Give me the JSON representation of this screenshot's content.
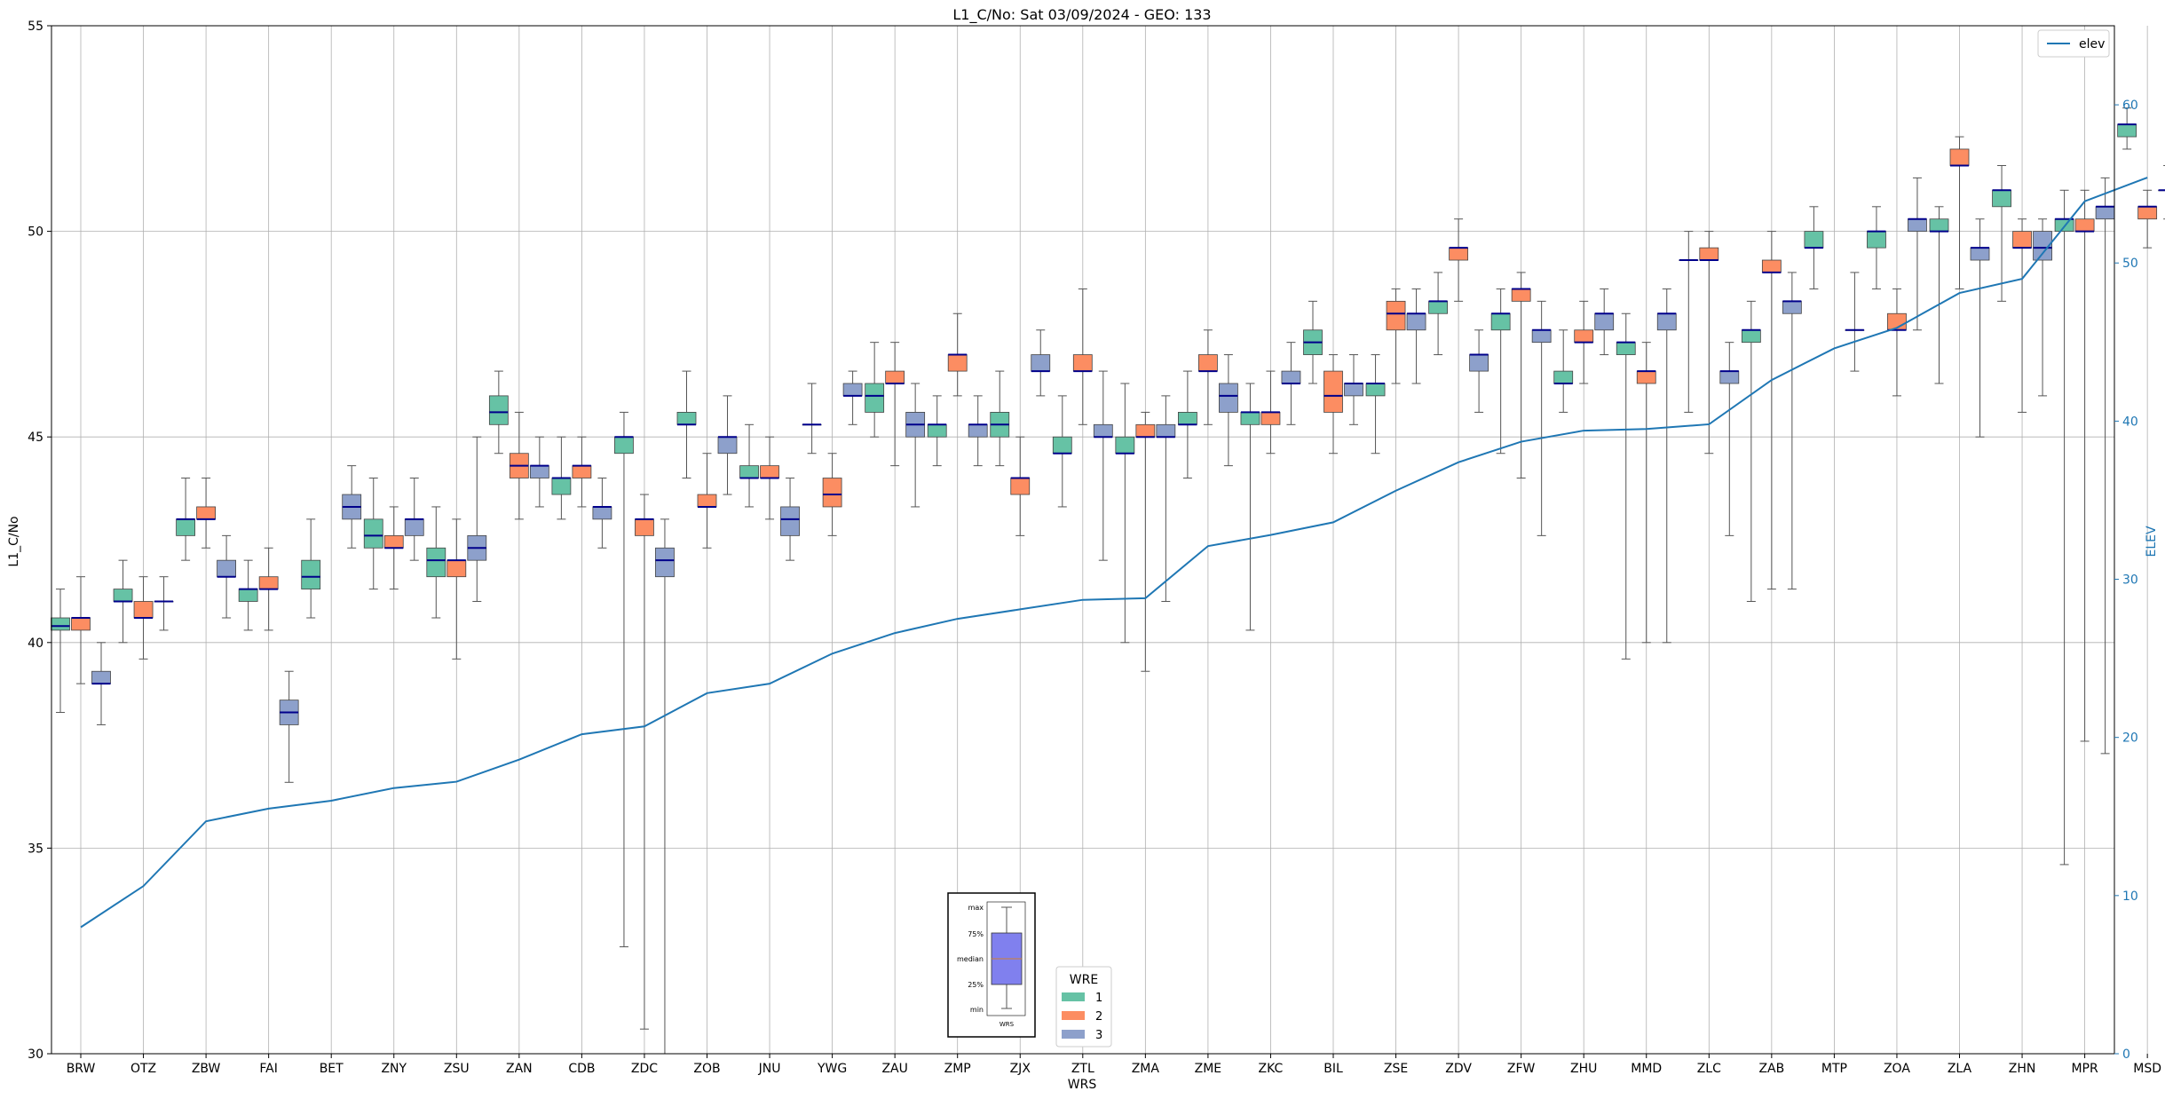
{
  "chart_data": {
    "type": "box",
    "title": "L1_C/No: Sat 03/09/2024 - GEO: 133",
    "xlabel": "WRS",
    "ylabel": "L1_C/No",
    "ylabel_right": "ELEV",
    "ylim": [
      30,
      55
    ],
    "ylim_right": [
      0,
      65
    ],
    "yticks": [
      30,
      35,
      40,
      45,
      50,
      55
    ],
    "yticks_right": [
      0,
      10,
      20,
      30,
      40,
      50,
      60
    ],
    "grid": true,
    "categories": [
      "BRW",
      "OTZ",
      "ZBW",
      "FAI",
      "BET",
      "ZNY",
      "ZSU",
      "ZAN",
      "CDB",
      "ZDC",
      "ZOB",
      "JNU",
      "YWG",
      "ZAU",
      "ZMP",
      "ZJX",
      "ZTL",
      "ZMA",
      "ZME",
      "ZKC",
      "BIL",
      "ZSE",
      "ZDV",
      "ZFW",
      "ZHU",
      "MMD",
      "ZLC",
      "ZAB",
      "MTP",
      "ZOA",
      "ZLA",
      "ZHN",
      "MPR",
      "MSD"
    ],
    "legend_wre": {
      "title": "WRE",
      "placement": "bottom-center",
      "entries": [
        "1",
        "2",
        "3"
      ],
      "colors": [
        "#66c2a5",
        "#fc8d62",
        "#8da0cb"
      ]
    },
    "legend_elev": {
      "label": "elev",
      "placement": "top-right",
      "color": "#1f77b4"
    },
    "key": {
      "labels": [
        "max",
        "75%",
        "median",
        "25%",
        "min"
      ],
      "xlabel": "WRS",
      "box_color": "#8080ee"
    },
    "median_color": "#00008b",
    "elev": [
      8,
      10.6,
      14.7,
      15.5,
      16,
      16.8,
      17.2,
      18.6,
      20.2,
      20.7,
      22.8,
      23.4,
      25.3,
      26.6,
      27.5,
      28.1,
      28.7,
      28.8,
      32.1,
      32.8,
      33.6,
      35.6,
      37.4,
      38.7,
      39.4,
      39.5,
      39.8,
      42.6,
      44.6,
      45.9,
      48.1,
      49.0,
      53.9,
      55.4
    ],
    "boxes": [
      {
        "cat": "BRW",
        "wre": 1,
        "whislo": 38.3,
        "q1": 40.3,
        "med": 40.4,
        "q3": 40.6,
        "whishi": 41.3
      },
      {
        "cat": "BRW",
        "wre": 2,
        "whislo": 39,
        "q1": 40.3,
        "med": 40.6,
        "q3": 40.6,
        "whishi": 41.6
      },
      {
        "cat": "BRW",
        "wre": 3,
        "whislo": 38,
        "q1": 39,
        "med": 39,
        "q3": 39.3,
        "whishi": 40
      },
      {
        "cat": "OTZ",
        "wre": 1,
        "whislo": 40,
        "q1": 41,
        "med": 41,
        "q3": 41.3,
        "whishi": 42
      },
      {
        "cat": "OTZ",
        "wre": 2,
        "whislo": 39.6,
        "q1": 40.6,
        "med": 40.6,
        "q3": 41,
        "whishi": 41.6
      },
      {
        "cat": "OTZ",
        "wre": 3,
        "whislo": 40.3,
        "q1": 41,
        "med": 41,
        "q3": 41,
        "whishi": 41.6
      },
      {
        "cat": "ZBW",
        "wre": 1,
        "whislo": 42,
        "q1": 42.6,
        "med": 43,
        "q3": 43,
        "whishi": 44
      },
      {
        "cat": "ZBW",
        "wre": 2,
        "whislo": 42.3,
        "q1": 43,
        "med": 43,
        "q3": 43.3,
        "whishi": 44
      },
      {
        "cat": "ZBW",
        "wre": 3,
        "whislo": 40.6,
        "q1": 41.6,
        "med": 41.6,
        "q3": 42,
        "whishi": 42.6
      },
      {
        "cat": "FAI",
        "wre": 1,
        "whislo": 40.3,
        "q1": 41,
        "med": 41.3,
        "q3": 41.3,
        "whishi": 42
      },
      {
        "cat": "FAI",
        "wre": 2,
        "whislo": 40.3,
        "q1": 41.3,
        "med": 41.3,
        "q3": 41.6,
        "whishi": 42.3
      },
      {
        "cat": "FAI",
        "wre": 3,
        "whislo": 36.6,
        "q1": 38,
        "med": 38.3,
        "q3": 38.6,
        "whishi": 39.3
      },
      {
        "cat": "BET",
        "wre": 1,
        "whislo": 40.6,
        "q1": 41.3,
        "med": 41.6,
        "q3": 42,
        "whishi": 43
      },
      {
        "cat": "BET",
        "wre": 3,
        "whislo": 42.3,
        "q1": 43,
        "med": 43.3,
        "q3": 43.6,
        "whishi": 44.3
      },
      {
        "cat": "ZNY",
        "wre": 1,
        "whislo": 41.3,
        "q1": 42.3,
        "med": 42.6,
        "q3": 43,
        "whishi": 44
      },
      {
        "cat": "ZNY",
        "wre": 2,
        "whislo": 41.3,
        "q1": 42.3,
        "med": 42.3,
        "q3": 42.6,
        "whishi": 43.3
      },
      {
        "cat": "ZNY",
        "wre": 3,
        "whislo": 42,
        "q1": 42.6,
        "med": 43,
        "q3": 43,
        "whishi": 44
      },
      {
        "cat": "ZSU",
        "wre": 1,
        "whislo": 40.6,
        "q1": 41.6,
        "med": 42,
        "q3": 42.3,
        "whishi": 43.3
      },
      {
        "cat": "ZSU",
        "wre": 2,
        "whislo": 39.6,
        "q1": 41.6,
        "med": 42,
        "q3": 42,
        "whishi": 43
      },
      {
        "cat": "ZSU",
        "wre": 3,
        "whislo": 41,
        "q1": 42,
        "med": 42.3,
        "q3": 42.6,
        "whishi": 45
      },
      {
        "cat": "ZAN",
        "wre": 1,
        "whislo": 44.6,
        "q1": 45.3,
        "med": 45.6,
        "q3": 46,
        "whishi": 46.6
      },
      {
        "cat": "ZAN",
        "wre": 2,
        "whislo": 43,
        "q1": 44,
        "med": 44.3,
        "q3": 44.6,
        "whishi": 45.6
      },
      {
        "cat": "ZAN",
        "wre": 3,
        "whislo": 43.3,
        "q1": 44,
        "med": 44.3,
        "q3": 44.3,
        "whishi": 45
      },
      {
        "cat": "CDB",
        "wre": 1,
        "whislo": 43,
        "q1": 43.6,
        "med": 44,
        "q3": 44,
        "whishi": 45
      },
      {
        "cat": "CDB",
        "wre": 2,
        "whislo": 43.3,
        "q1": 44,
        "med": 44.3,
        "q3": 44.3,
        "whishi": 45
      },
      {
        "cat": "CDB",
        "wre": 3,
        "whislo": 42.3,
        "q1": 43,
        "med": 43.3,
        "q3": 43.3,
        "whishi": 44
      },
      {
        "cat": "ZDC",
        "wre": 1,
        "whislo": 32.6,
        "q1": 44.6,
        "med": 45,
        "q3": 45,
        "whishi": 45.6
      },
      {
        "cat": "ZDC",
        "wre": 2,
        "whislo": 30.6,
        "q1": 42.6,
        "med": 43,
        "q3": 43,
        "whishi": 43.6
      },
      {
        "cat": "ZDC",
        "wre": 3,
        "whislo": 30,
        "q1": 41.6,
        "med": 42,
        "q3": 42.3,
        "whishi": 43
      },
      {
        "cat": "ZOB",
        "wre": 1,
        "whislo": 44,
        "q1": 45.3,
        "med": 45.3,
        "q3": 45.6,
        "whishi": 46.6
      },
      {
        "cat": "ZOB",
        "wre": 2,
        "whislo": 42.3,
        "q1": 43.3,
        "med": 43.3,
        "q3": 43.6,
        "whishi": 44.6
      },
      {
        "cat": "ZOB",
        "wre": 3,
        "whislo": 43.6,
        "q1": 44.6,
        "med": 45,
        "q3": 45,
        "whishi": 46
      },
      {
        "cat": "JNU",
        "wre": 1,
        "whislo": 43.3,
        "q1": 44,
        "med": 44,
        "q3": 44.3,
        "whishi": 45.3
      },
      {
        "cat": "JNU",
        "wre": 2,
        "whislo": 43,
        "q1": 44,
        "med": 44,
        "q3": 44.3,
        "whishi": 45
      },
      {
        "cat": "JNU",
        "wre": 3,
        "whislo": 42,
        "q1": 42.6,
        "med": 43,
        "q3": 43.3,
        "whishi": 44
      },
      {
        "cat": "YWG",
        "wre": 1,
        "whislo": 44.6,
        "q1": 45.3,
        "med": 45.3,
        "q3": 45.3,
        "whishi": 46.3
      },
      {
        "cat": "YWG",
        "wre": 2,
        "whislo": 42.6,
        "q1": 43.3,
        "med": 43.6,
        "q3": 44,
        "whishi": 44.6
      },
      {
        "cat": "YWG",
        "wre": 3,
        "whislo": 45.3,
        "q1": 46,
        "med": 46,
        "q3": 46.3,
        "whishi": 46.6
      },
      {
        "cat": "ZAU",
        "wre": 1,
        "whislo": 45,
        "q1": 45.6,
        "med": 46,
        "q3": 46.3,
        "whishi": 47.3
      },
      {
        "cat": "ZAU",
        "wre": 2,
        "whislo": 44.3,
        "q1": 46.3,
        "med": 46.3,
        "q3": 46.6,
        "whishi": 47.3
      },
      {
        "cat": "ZAU",
        "wre": 3,
        "whislo": 43.3,
        "q1": 45,
        "med": 45.3,
        "q3": 45.6,
        "whishi": 46.3
      },
      {
        "cat": "ZMP",
        "wre": 1,
        "whislo": 44.3,
        "q1": 45,
        "med": 45.3,
        "q3": 45.3,
        "whishi": 46
      },
      {
        "cat": "ZMP",
        "wre": 2,
        "whislo": 46,
        "q1": 46.6,
        "med": 47,
        "q3": 47,
        "whishi": 48
      },
      {
        "cat": "ZMP",
        "wre": 3,
        "whislo": 44.3,
        "q1": 45,
        "med": 45.3,
        "q3": 45.3,
        "whishi": 46
      },
      {
        "cat": "ZJX",
        "wre": 1,
        "whislo": 44.3,
        "q1": 45,
        "med": 45.3,
        "q3": 45.6,
        "whishi": 46.6
      },
      {
        "cat": "ZJX",
        "wre": 2,
        "whislo": 42.6,
        "q1": 43.6,
        "med": 44,
        "q3": 44,
        "whishi": 45
      },
      {
        "cat": "ZJX",
        "wre": 3,
        "whislo": 46,
        "q1": 46.6,
        "med": 46.6,
        "q3": 47,
        "whishi": 47.6
      },
      {
        "cat": "ZTL",
        "wre": 1,
        "whislo": 43.3,
        "q1": 44.6,
        "med": 44.6,
        "q3": 45,
        "whishi": 46
      },
      {
        "cat": "ZTL",
        "wre": 2,
        "whislo": 45.3,
        "q1": 46.6,
        "med": 46.6,
        "q3": 47,
        "whishi": 48.6
      },
      {
        "cat": "ZTL",
        "wre": 3,
        "whislo": 42,
        "q1": 45,
        "med": 45,
        "q3": 45.3,
        "whishi": 46.6
      },
      {
        "cat": "ZMA",
        "wre": 1,
        "whislo": 40,
        "q1": 44.6,
        "med": 44.6,
        "q3": 45,
        "whishi": 46.3
      },
      {
        "cat": "ZMA",
        "wre": 2,
        "whislo": 39.3,
        "q1": 45,
        "med": 45,
        "q3": 45.3,
        "whishi": 45.6
      },
      {
        "cat": "ZMA",
        "wre": 3,
        "whislo": 41,
        "q1": 45,
        "med": 45,
        "q3": 45.3,
        "whishi": 46
      },
      {
        "cat": "ZME",
        "wre": 1,
        "whislo": 44,
        "q1": 45.3,
        "med": 45.3,
        "q3": 45.6,
        "whishi": 46.6
      },
      {
        "cat": "ZME",
        "wre": 2,
        "whislo": 45.3,
        "q1": 46.6,
        "med": 46.6,
        "q3": 47,
        "whishi": 47.6
      },
      {
        "cat": "ZME",
        "wre": 3,
        "whislo": 44.3,
        "q1": 45.6,
        "med": 46,
        "q3": 46.3,
        "whishi": 47
      },
      {
        "cat": "ZKC",
        "wre": 1,
        "whislo": 40.3,
        "q1": 45.3,
        "med": 45.6,
        "q3": 45.6,
        "whishi": 46.3
      },
      {
        "cat": "ZKC",
        "wre": 2,
        "whislo": 44.6,
        "q1": 45.3,
        "med": 45.6,
        "q3": 45.6,
        "whishi": 46.6
      },
      {
        "cat": "ZKC",
        "wre": 3,
        "whislo": 45.3,
        "q1": 46.3,
        "med": 46.3,
        "q3": 46.6,
        "whishi": 47.3
      },
      {
        "cat": "BIL",
        "wre": 1,
        "whislo": 46.3,
        "q1": 47,
        "med": 47.3,
        "q3": 47.6,
        "whishi": 48.3
      },
      {
        "cat": "BIL",
        "wre": 2,
        "whislo": 44.6,
        "q1": 45.6,
        "med": 46,
        "q3": 46.6,
        "whishi": 47
      },
      {
        "cat": "BIL",
        "wre": 3,
        "whislo": 45.3,
        "q1": 46,
        "med": 46.3,
        "q3": 46.3,
        "whishi": 47
      },
      {
        "cat": "ZSE",
        "wre": 1,
        "whislo": 44.6,
        "q1": 46,
        "med": 46.3,
        "q3": 46.3,
        "whishi": 47
      },
      {
        "cat": "ZSE",
        "wre": 2,
        "whislo": 46.3,
        "q1": 47.6,
        "med": 48,
        "q3": 48.3,
        "whishi": 48.6
      },
      {
        "cat": "ZSE",
        "wre": 3,
        "whislo": 46.3,
        "q1": 47.6,
        "med": 48,
        "q3": 48,
        "whishi": 48.6
      },
      {
        "cat": "ZDV",
        "wre": 1,
        "whislo": 47,
        "q1": 48,
        "med": 48.3,
        "q3": 48.3,
        "whishi": 49
      },
      {
        "cat": "ZDV",
        "wre": 2,
        "whislo": 48.3,
        "q1": 49.3,
        "med": 49.6,
        "q3": 49.6,
        "whishi": 50.3
      },
      {
        "cat": "ZDV",
        "wre": 3,
        "whislo": 45.6,
        "q1": 46.6,
        "med": 47,
        "q3": 47,
        "whishi": 47.6
      },
      {
        "cat": "ZFW",
        "wre": 1,
        "whislo": 44.6,
        "q1": 47.6,
        "med": 48,
        "q3": 48,
        "whishi": 48.6
      },
      {
        "cat": "ZFW",
        "wre": 2,
        "whislo": 44,
        "q1": 48.3,
        "med": 48.6,
        "q3": 48.6,
        "whishi": 49
      },
      {
        "cat": "ZFW",
        "wre": 3,
        "whislo": 42.6,
        "q1": 47.3,
        "med": 47.6,
        "q3": 47.6,
        "whishi": 48.3
      },
      {
        "cat": "ZHU",
        "wre": 1,
        "whislo": 45.6,
        "q1": 46.3,
        "med": 46.3,
        "q3": 46.6,
        "whishi": 47.6
      },
      {
        "cat": "ZHU",
        "wre": 2,
        "whislo": 46.3,
        "q1": 47.3,
        "med": 47.3,
        "q3": 47.6,
        "whishi": 48.3
      },
      {
        "cat": "ZHU",
        "wre": 3,
        "whislo": 47,
        "q1": 47.6,
        "med": 48,
        "q3": 48,
        "whishi": 48.6
      },
      {
        "cat": "MMD",
        "wre": 1,
        "whislo": 39.6,
        "q1": 47,
        "med": 47.3,
        "q3": 47.3,
        "whishi": 48
      },
      {
        "cat": "MMD",
        "wre": 2,
        "whislo": 40,
        "q1": 46.3,
        "med": 46.6,
        "q3": 46.6,
        "whishi": 47.3
      },
      {
        "cat": "MMD",
        "wre": 3,
        "whislo": 40,
        "q1": 47.6,
        "med": 48,
        "q3": 48,
        "whishi": 48.6
      },
      {
        "cat": "ZLC",
        "wre": 1,
        "whislo": 45.6,
        "q1": 49.3,
        "med": 49.3,
        "q3": 49.3,
        "whishi": 50
      },
      {
        "cat": "ZLC",
        "wre": 2,
        "whislo": 44.6,
        "q1": 49.3,
        "med": 49.3,
        "q3": 49.6,
        "whishi": 50
      },
      {
        "cat": "ZLC",
        "wre": 3,
        "whislo": 42.6,
        "q1": 46.3,
        "med": 46.6,
        "q3": 46.6,
        "whishi": 47.3
      },
      {
        "cat": "ZAB",
        "wre": 1,
        "whislo": 41,
        "q1": 47.3,
        "med": 47.6,
        "q3": 47.6,
        "whishi": 48.3
      },
      {
        "cat": "ZAB",
        "wre": 2,
        "whislo": 41.3,
        "q1": 49,
        "med": 49,
        "q3": 49.3,
        "whishi": 50
      },
      {
        "cat": "ZAB",
        "wre": 3,
        "whislo": 41.3,
        "q1": 48,
        "med": 48.3,
        "q3": 48.3,
        "whishi": 49
      },
      {
        "cat": "MTP",
        "wre": 1,
        "whislo": 48.6,
        "q1": 49.6,
        "med": 49.6,
        "q3": 50,
        "whishi": 50.6
      },
      {
        "cat": "MTP",
        "wre": 3,
        "whislo": 46.6,
        "q1": 47.6,
        "med": 47.6,
        "q3": 47.6,
        "whishi": 49
      },
      {
        "cat": "ZOA",
        "wre": 1,
        "whislo": 48.6,
        "q1": 49.6,
        "med": 50,
        "q3": 50,
        "whishi": 50.6
      },
      {
        "cat": "ZOA",
        "wre": 2,
        "whislo": 46,
        "q1": 47.6,
        "med": 47.6,
        "q3": 48,
        "whishi": 48.6
      },
      {
        "cat": "ZOA",
        "wre": 3,
        "whislo": 47.6,
        "q1": 50,
        "med": 50.3,
        "q3": 50.3,
        "whishi": 51.3
      },
      {
        "cat": "ZLA",
        "wre": 1,
        "whislo": 46.3,
        "q1": 50,
        "med": 50,
        "q3": 50.3,
        "whishi": 50.6
      },
      {
        "cat": "ZLA",
        "wre": 2,
        "whislo": 48.6,
        "q1": 51.6,
        "med": 51.6,
        "q3": 52,
        "whishi": 52.3
      },
      {
        "cat": "ZLA",
        "wre": 3,
        "whislo": 45,
        "q1": 49.3,
        "med": 49.6,
        "q3": 49.6,
        "whishi": 50.3
      },
      {
        "cat": "ZHN",
        "wre": 1,
        "whislo": 48.3,
        "q1": 50.6,
        "med": 51,
        "q3": 51,
        "whishi": 51.6
      },
      {
        "cat": "ZHN",
        "wre": 2,
        "whislo": 45.6,
        "q1": 49.6,
        "med": 49.6,
        "q3": 50,
        "whishi": 50.3
      },
      {
        "cat": "ZHN",
        "wre": 3,
        "whislo": 46,
        "q1": 49.3,
        "med": 49.6,
        "q3": 50,
        "whishi": 50.3
      },
      {
        "cat": "MPR",
        "wre": 1,
        "whislo": 34.6,
        "q1": 50,
        "med": 50.3,
        "q3": 50.3,
        "whishi": 51
      },
      {
        "cat": "MPR",
        "wre": 2,
        "whislo": 37.6,
        "q1": 50,
        "med": 50,
        "q3": 50.3,
        "whishi": 51
      },
      {
        "cat": "MPR",
        "wre": 3,
        "whislo": 37.3,
        "q1": 50.3,
        "med": 50.6,
        "q3": 50.6,
        "whishi": 51.3
      },
      {
        "cat": "MSD",
        "wre": 1,
        "whislo": 52,
        "q1": 52.3,
        "med": 52.6,
        "q3": 52.6,
        "whishi": 53
      },
      {
        "cat": "MSD",
        "wre": 2,
        "whislo": 49.6,
        "q1": 50.3,
        "med": 50.6,
        "q3": 50.6,
        "whishi": 51
      },
      {
        "cat": "MSD",
        "wre": 3,
        "whislo": 50.3,
        "q1": 51,
        "med": 51,
        "q3": 51,
        "whishi": 51.6
      }
    ]
  }
}
